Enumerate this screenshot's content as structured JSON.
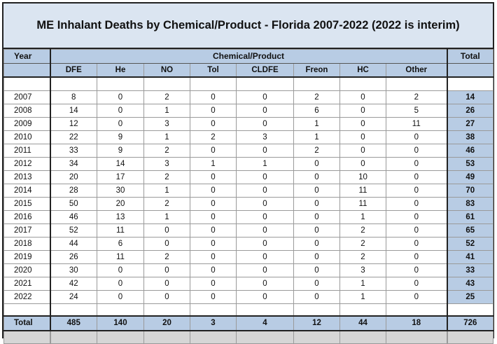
{
  "title": "ME Inhalant Deaths by Chemical/Product - Florida 2007-2022 (2022 is interim)",
  "header": {
    "year_label": "Year",
    "group_label": "Chemical/Product",
    "total_label": "Total"
  },
  "columns": [
    "DFE",
    "He",
    "NO",
    "Tol",
    "CLDFE",
    "Freon",
    "HC",
    "Other"
  ],
  "rows": [
    {
      "year": "2007",
      "values": [
        "8",
        "0",
        "2",
        "0",
        "0",
        "2",
        "0",
        "2"
      ],
      "total": "14"
    },
    {
      "year": "2008",
      "values": [
        "14",
        "0",
        "1",
        "0",
        "0",
        "6",
        "0",
        "5"
      ],
      "total": "26"
    },
    {
      "year": "2009",
      "values": [
        "12",
        "0",
        "3",
        "0",
        "0",
        "1",
        "0",
        "11"
      ],
      "total": "27"
    },
    {
      "year": "2010",
      "values": [
        "22",
        "9",
        "1",
        "2",
        "3",
        "1",
        "0",
        "0"
      ],
      "total": "38"
    },
    {
      "year": "2011",
      "values": [
        "33",
        "9",
        "2",
        "0",
        "0",
        "2",
        "0",
        "0"
      ],
      "total": "46"
    },
    {
      "year": "2012",
      "values": [
        "34",
        "14",
        "3",
        "1",
        "1",
        "0",
        "0",
        "0"
      ],
      "total": "53"
    },
    {
      "year": "2013",
      "values": [
        "20",
        "17",
        "2",
        "0",
        "0",
        "0",
        "10",
        "0"
      ],
      "total": "49"
    },
    {
      "year": "2014",
      "values": [
        "28",
        "30",
        "1",
        "0",
        "0",
        "0",
        "11",
        "0"
      ],
      "total": "70"
    },
    {
      "year": "2015",
      "values": [
        "50",
        "20",
        "2",
        "0",
        "0",
        "0",
        "11",
        "0"
      ],
      "total": "83"
    },
    {
      "year": "2016",
      "values": [
        "46",
        "13",
        "1",
        "0",
        "0",
        "0",
        "1",
        "0"
      ],
      "total": "61"
    },
    {
      "year": "2017",
      "values": [
        "52",
        "11",
        "0",
        "0",
        "0",
        "0",
        "2",
        "0"
      ],
      "total": "65"
    },
    {
      "year": "2018",
      "values": [
        "44",
        "6",
        "0",
        "0",
        "0",
        "0",
        "2",
        "0"
      ],
      "total": "52"
    },
    {
      "year": "2019",
      "values": [
        "26",
        "11",
        "2",
        "0",
        "0",
        "0",
        "2",
        "0"
      ],
      "total": "41"
    },
    {
      "year": "2020",
      "values": [
        "30",
        "0",
        "0",
        "0",
        "0",
        "0",
        "3",
        "0"
      ],
      "total": "33"
    },
    {
      "year": "2021",
      "values": [
        "42",
        "0",
        "0",
        "0",
        "0",
        "0",
        "1",
        "0"
      ],
      "total": "43"
    },
    {
      "year": "2022",
      "values": [
        "24",
        "0",
        "0",
        "0",
        "0",
        "0",
        "1",
        "0"
      ],
      "total": "25"
    }
  ],
  "totals": {
    "label": "Total",
    "values": [
      "485",
      "140",
      "20",
      "3",
      "4",
      "12",
      "44",
      "18"
    ],
    "total": "726"
  },
  "colors": {
    "header_fill": "#b8cce4",
    "title_fill": "#dbe5f1",
    "footer_fill": "#d6d6d6"
  }
}
